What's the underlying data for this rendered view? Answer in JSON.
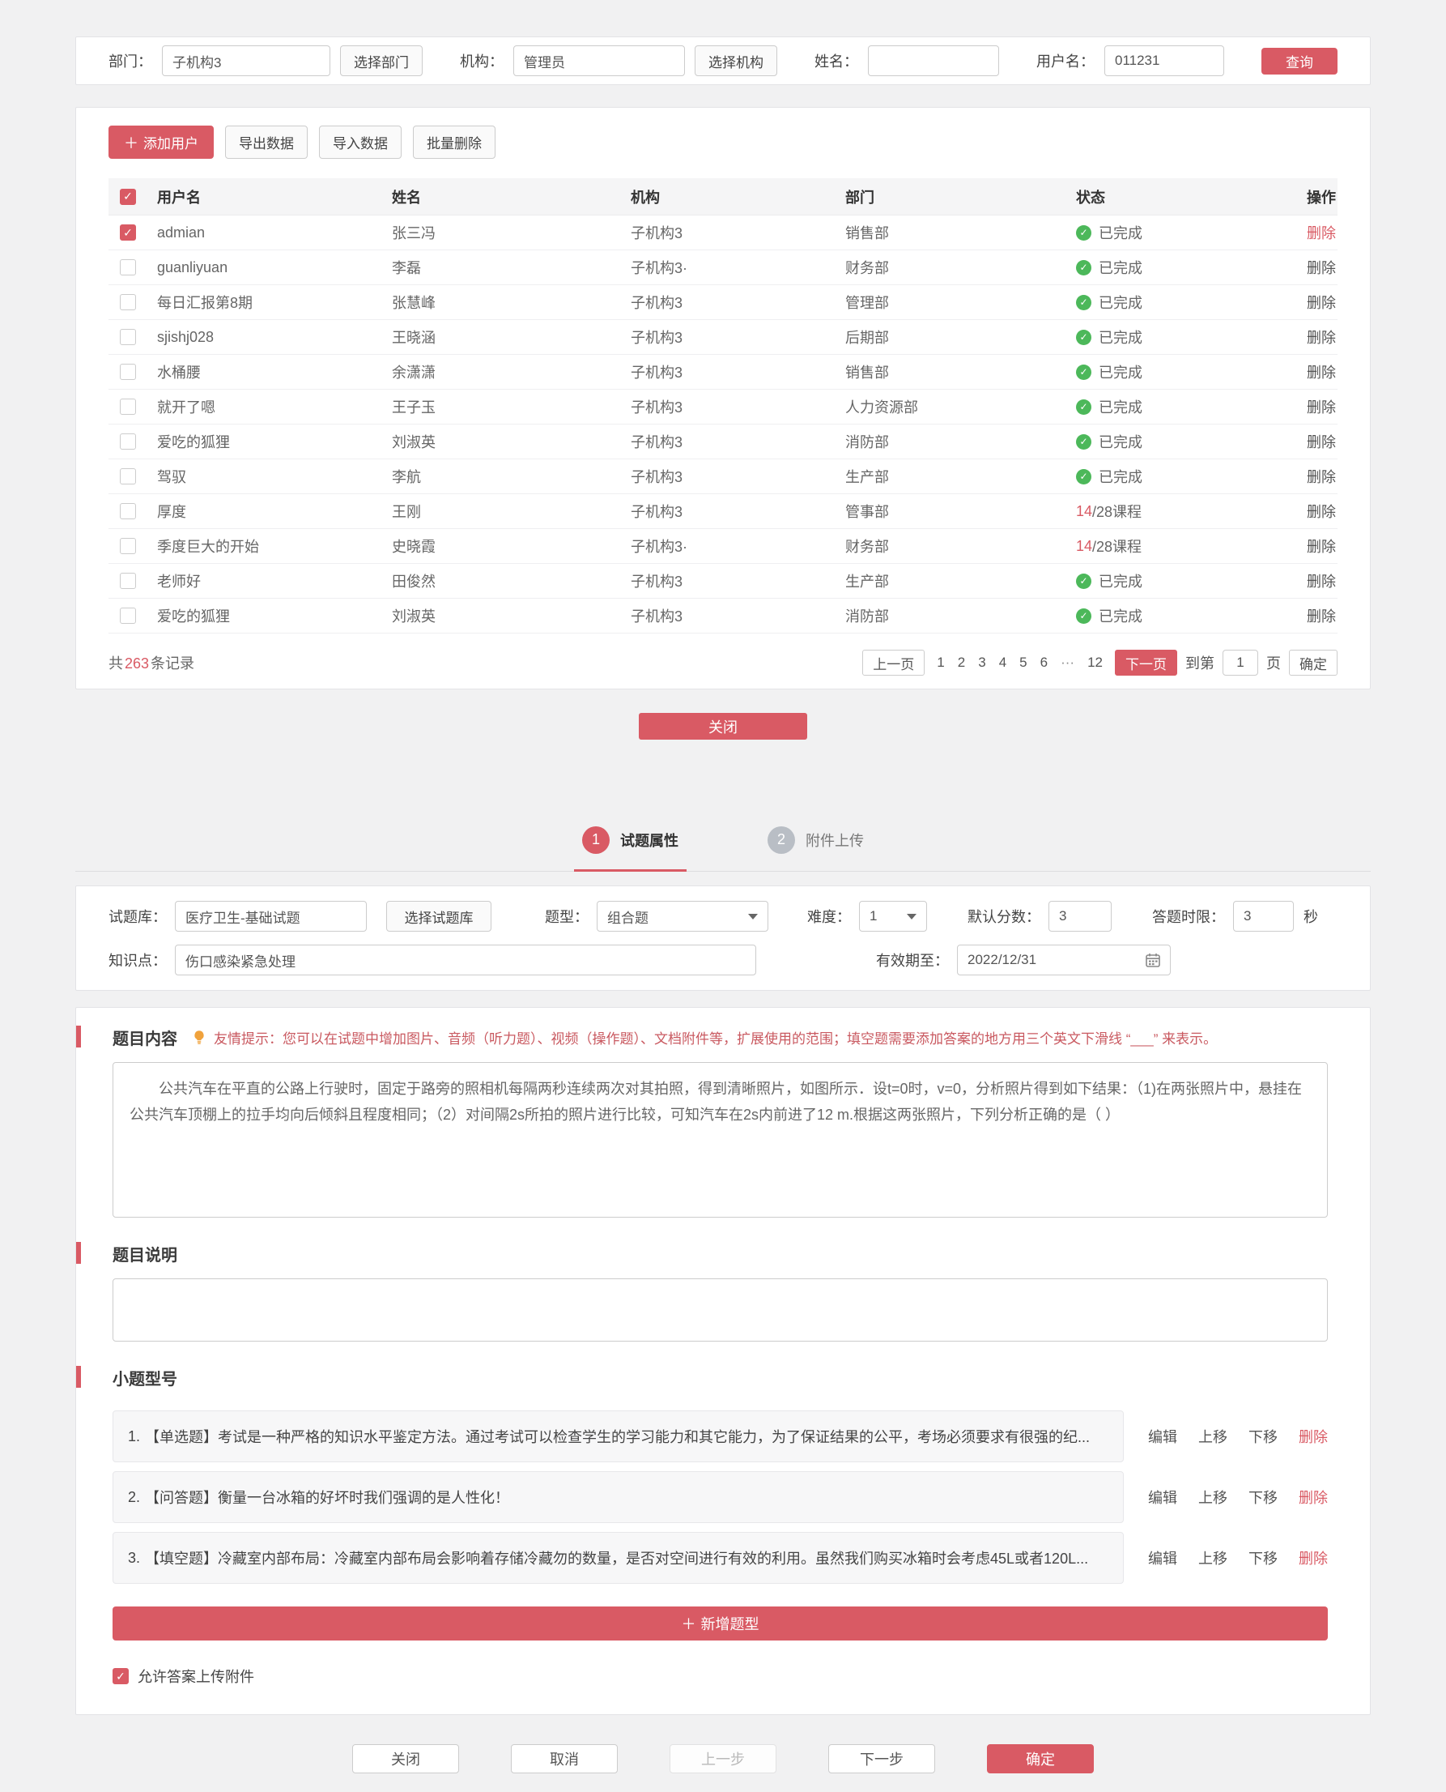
{
  "colors": {
    "accent": "#d95a64",
    "green": "#4cb85a"
  },
  "user_modal": {
    "filters": {
      "dept_label": "部门：",
      "dept_value": "子机构3",
      "dept_button": "选择部门",
      "org_label": "机构：",
      "org_value": "管理员",
      "org_button": "选择机构",
      "name_label": "姓名：",
      "name_value": "",
      "username_label": "用户名：",
      "username_value": "011231",
      "search_button": "查询"
    },
    "toolbar": {
      "add_user": "添加用户",
      "export": "导出数据",
      "import": "导入数据",
      "batch_delete": "批量删除"
    },
    "table": {
      "headers": [
        "用户名",
        "姓名",
        "机构",
        "部门",
        "状态",
        "操作"
      ],
      "rows": [
        {
          "checked": true,
          "username": "admian",
          "name": "张三冯",
          "org": "子机构3",
          "dept": "销售部",
          "status_type": "done",
          "status": "已完成",
          "action": "删除",
          "action_red": true
        },
        {
          "checked": false,
          "username": "guanliyuan",
          "name": "李磊",
          "org": "子机构3·",
          "dept": "财务部",
          "status_type": "done",
          "status": "已完成",
          "action": "删除",
          "action_red": false
        },
        {
          "checked": false,
          "username": "每日汇报第8期",
          "name": "张慧峰",
          "org": "子机构3",
          "dept": "管理部",
          "status_type": "done",
          "status": "已完成",
          "action": "删除",
          "action_red": false
        },
        {
          "checked": false,
          "username": "sjishj028",
          "name": "王晓涵",
          "org": "子机构3",
          "dept": "后期部",
          "status_type": "done",
          "status": "已完成",
          "action": "删除",
          "action_red": false
        },
        {
          "checked": false,
          "username": "水桶腰",
          "name": "余潇潇",
          "org": "子机构3",
          "dept": "销售部",
          "status_type": "done",
          "status": "已完成",
          "action": "删除",
          "action_red": false
        },
        {
          "checked": false,
          "username": "就开了嗯",
          "name": "王子玉",
          "org": "子机构3",
          "dept": "人力资源部",
          "status_type": "done",
          "status": "已完成",
          "action": "删除",
          "action_red": false
        },
        {
          "checked": false,
          "username": "爱吃的狐狸",
          "name": "刘淑英",
          "org": "子机构3",
          "dept": "消防部",
          "status_type": "done",
          "status": "已完成",
          "action": "删除",
          "action_red": false
        },
        {
          "checked": false,
          "username": "驾驭",
          "name": "李航",
          "org": "子机构3",
          "dept": "生产部",
          "status_type": "done",
          "status": "已完成",
          "action": "删除",
          "action_red": false
        },
        {
          "checked": false,
          "username": "厚度",
          "name": "王刚",
          "org": "子机构3",
          "dept": "管事部",
          "status_type": "course",
          "status_num": "14",
          "status_rest": "/28课程",
          "action": "删除",
          "action_red": false
        },
        {
          "checked": false,
          "username": "季度巨大的开始",
          "name": "史晓霞",
          "org": "子机构3·",
          "dept": "财务部",
          "status_type": "course",
          "status_num": "14",
          "status_rest": "/28课程",
          "action": "删除",
          "action_red": false
        },
        {
          "checked": false,
          "username": "老师好",
          "name": "田俊然",
          "org": "子机构3",
          "dept": "生产部",
          "status_type": "done",
          "status": "已完成",
          "action": "删除",
          "action_red": false
        },
        {
          "checked": false,
          "username": "爱吃的狐狸",
          "name": "刘淑英",
          "org": "子机构3",
          "dept": "消防部",
          "status_type": "done",
          "status": "已完成",
          "action": "删除",
          "action_red": false
        }
      ]
    },
    "footer": {
      "total_prefix": "共",
      "total_count": "263",
      "total_suffix": "条记录"
    },
    "pagination": {
      "prev": "上一页",
      "pages": [
        "1",
        "2",
        "3",
        "4",
        "5",
        "6",
        "···",
        "12"
      ],
      "next": "下一页",
      "goto_prefix": "到第",
      "goto_value": "1",
      "goto_suffix": "页",
      "confirm": "确定"
    },
    "close_button": "关闭"
  },
  "editor": {
    "steps": [
      {
        "num": "1",
        "label": "试题属性"
      },
      {
        "num": "2",
        "label": "附件上传"
      }
    ],
    "form": {
      "bank_label": "试题库：",
      "bank_value": "医疗卫生-基础试题",
      "bank_button": "选择试题库",
      "type_label": "题型：",
      "type_value": "组合题",
      "difficulty_label": "难度：",
      "difficulty_value": "1",
      "score_label": "默认分数：",
      "score_value": "3",
      "time_label": "答题时限：",
      "time_value": "3",
      "time_unit": "秒",
      "knowledge_label": "知识点：",
      "knowledge_value": "伤口感染紧急处理",
      "expiry_label": "有效期至：",
      "expiry_value": "2022/12/31"
    },
    "content_section": {
      "title": "题目内容",
      "tip": "友情提示：您可以在试题中增加图片、音频（听力题）、视频（操作题）、文档附件等，扩展使用的范围；填空题需要添加答案的地方用三个英文下滑线 “___” 来表示。",
      "value": "公共汽车在平直的公路上行驶时，固定于路旁的照相机每隔两秒连续两次对其拍照，得到清晰照片，如图所示．设t=0时，v=0，分析照片得到如下结果：（1)在两张照片中，悬挂在公共汽车顶棚上的拉手均向后倾斜且程度相同；（2）对间隔2s所拍的照片进行比较，可知汽车在2s内前进了12 m.根据这两张照片，下列分析正确的是（  ）"
    },
    "desc_section": {
      "title": "题目说明",
      "value": ""
    },
    "subq_section": {
      "title": "小题型号",
      "items": [
        {
          "index": "1.",
          "text": "【单选题】考试是一种严格的知识水平鉴定方法。通过考试可以检查学生的学习能力和其它能力，为了保证结果的公平，考场必须要求有很强的纪..."
        },
        {
          "index": "2.",
          "text": "【问答题】衡量一台冰箱的好坏时我们强调的是人性化！"
        },
        {
          "index": "3.",
          "text": "【填空题】冷藏室内部布局：冷藏室内部布局会影响着存储冷藏勿的数量，是否对空间进行有效的利用。虽然我们购买冰箱时会考虑45L或者120L..."
        }
      ],
      "actions": [
        {
          "label": "编辑",
          "name": "edit"
        },
        {
          "label": "上移",
          "name": "move-up"
        },
        {
          "label": "下移",
          "name": "move-down"
        },
        {
          "label": "删除",
          "name": "delete"
        }
      ],
      "add_button": "新增题型"
    },
    "allow_upload_label": "允许答案上传附件",
    "footer_buttons": [
      {
        "label": "关闭",
        "name": "close-button",
        "style": "default"
      },
      {
        "label": "取消",
        "name": "cancel-button",
        "style": "default"
      },
      {
        "label": "上一步",
        "name": "prev-step-button",
        "style": "disabled"
      },
      {
        "label": "下一步",
        "name": "next-step-button",
        "style": "default"
      },
      {
        "label": "确定",
        "name": "confirm-button",
        "style": "primary"
      }
    ]
  }
}
